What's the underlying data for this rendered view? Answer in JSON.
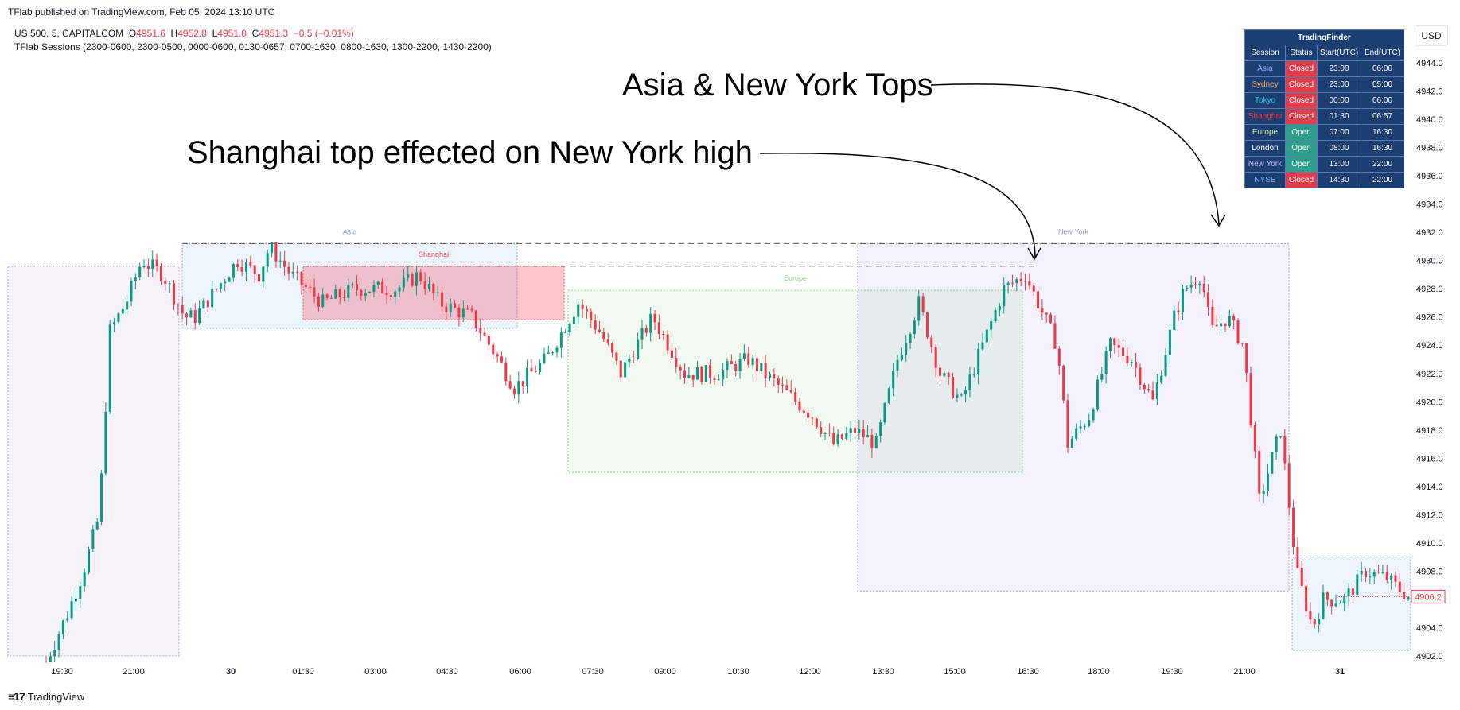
{
  "header": "TFlab published on TradingView.com, Feb 05, 2024 13:10 UTC",
  "symbol": {
    "name": "US 500, 5, CAPITALCOM",
    "o_label": "O",
    "o": "4951.6",
    "h_label": "H",
    "h": "4952.8",
    "l_label": "L",
    "l": "4951.0",
    "c_label": "C",
    "c": "4951.3",
    "change": "−0.5 (−0.01%)"
  },
  "indicator": "TFlab Sessions (2300-0600, 2300-0500, 0000-0600, 0130-0657, 0700-1630, 0800-1630, 1300-2200, 1430-2200)",
  "currency": "USD",
  "footer": "TradingView",
  "annotations": {
    "top": "Asia & New York Tops",
    "mid": "Shanghai top effected on New York high"
  },
  "price_tag": "4906.2",
  "table": {
    "title": "TradingFinder",
    "headers": [
      "Session",
      "Status",
      "Start(UTC)",
      "End(UTC)"
    ],
    "rows": [
      {
        "session": "Asia",
        "color": "#8fb3ff",
        "status": "Closed",
        "start": "23:00",
        "end": "06:00"
      },
      {
        "session": "Sydney",
        "color": "#f5a25d",
        "status": "Closed",
        "start": "23:00",
        "end": "05:00"
      },
      {
        "session": "Tokyo",
        "color": "#29c4e8",
        "status": "Closed",
        "start": "00:00",
        "end": "06:00"
      },
      {
        "session": "Shanghai",
        "color": "#ff3344",
        "status": "Closed",
        "start": "01:30",
        "end": "06:57"
      },
      {
        "session": "Europe",
        "color": "#d0f0a0",
        "status": "Open",
        "start": "07:00",
        "end": "16:30"
      },
      {
        "session": "London",
        "color": "#ffffff",
        "status": "Open",
        "start": "08:00",
        "end": "16:30"
      },
      {
        "session": "New York",
        "color": "#c8b8ff",
        "status": "Open",
        "start": "13:00",
        "end": "22:00"
      },
      {
        "session": "NYSE",
        "color": "#7fb0ff",
        "status": "Closed",
        "start": "14:30",
        "end": "22:00"
      }
    ]
  },
  "chart_data": {
    "type": "candlestick",
    "y_ticks": [
      "4944.0",
      "4942.0",
      "4940.0",
      "4938.0",
      "4936.0",
      "4934.0",
      "4932.0",
      "4930.0",
      "4928.0",
      "4926.0",
      "4924.0",
      "4922.0",
      "4920.0",
      "4918.0",
      "4916.0",
      "4914.0",
      "4912.0",
      "4910.0",
      "4908.0",
      "4906.0",
      "4904.0",
      "4902.0"
    ],
    "ylim": [
      4901.6,
      4945.2
    ],
    "x_ticks": [
      "19:30",
      "21:00",
      "30",
      "01:30",
      "03:00",
      "04:30",
      "06:00",
      "07:30",
      "09:00",
      "10:30",
      "12:00",
      "13:30",
      "15:00",
      "16:30",
      "18:00",
      "19:30",
      "21:00",
      "31"
    ],
    "price_path": [
      [
        0,
        4901.6
      ],
      [
        20,
        4905
      ],
      [
        35,
        4908
      ],
      [
        50,
        4912
      ],
      [
        60,
        4925
      ],
      [
        75,
        4927
      ],
      [
        90,
        4930
      ],
      [
        110,
        4929
      ],
      [
        130,
        4926
      ],
      [
        140,
        4926
      ],
      [
        150,
        4927
      ],
      [
        180,
        4930
      ],
      [
        200,
        4929
      ],
      [
        210,
        4931
      ],
      [
        230,
        4929
      ],
      [
        260,
        4927
      ],
      [
        290,
        4928
      ],
      [
        330,
        4928
      ],
      [
        350,
        4929
      ],
      [
        370,
        4927
      ],
      [
        400,
        4926
      ],
      [
        425,
        4923
      ],
      [
        440,
        4921
      ],
      [
        470,
        4923
      ],
      [
        500,
        4927
      ],
      [
        520,
        4925
      ],
      [
        540,
        4922
      ],
      [
        570,
        4926
      ],
      [
        600,
        4922
      ],
      [
        630,
        4922
      ],
      [
        660,
        4923
      ],
      [
        690,
        4921
      ],
      [
        720,
        4919
      ],
      [
        740,
        4917
      ],
      [
        760,
        4918
      ],
      [
        780,
        4917
      ],
      [
        800,
        4923
      ],
      [
        820,
        4927
      ],
      [
        840,
        4922
      ],
      [
        860,
        4920
      ],
      [
        880,
        4924
      ],
      [
        900,
        4928
      ],
      [
        920,
        4929
      ],
      [
        950,
        4924
      ],
      [
        960,
        4917
      ],
      [
        980,
        4919
      ],
      [
        1000,
        4924
      ],
      [
        1020,
        4923
      ],
      [
        1040,
        4920
      ],
      [
        1060,
        4926
      ],
      [
        1070,
        4928
      ],
      [
        1085,
        4929
      ],
      [
        1095,
        4925
      ],
      [
        1110,
        4926
      ],
      [
        1125,
        4924
      ],
      [
        1140,
        4913
      ],
      [
        1160,
        4918
      ],
      [
        1175,
        4908
      ],
      [
        1190,
        4904
      ],
      [
        1200,
        4906
      ],
      [
        1220,
        4906
      ],
      [
        1240,
        4908
      ],
      [
        1260,
        4907.5
      ],
      [
        1270,
        4906.8
      ],
      [
        1280,
        4906.2
      ]
    ],
    "sessions": [
      {
        "name": "",
        "y_range": [
          4902,
          4929.6
        ],
        "color": "#b39ddb"
      },
      {
        "name": "Asia",
        "y_range": [
          4925.2,
          4931.2
        ],
        "color": "#7ea7e8"
      },
      {
        "name": "Shanghai",
        "y_range": [
          4925.8,
          4929.6
        ],
        "color": "#f04a5a"
      },
      {
        "name": "Europe",
        "y_range": [
          4915.0,
          4927.9
        ],
        "color": "#8fd18a"
      },
      {
        "name": "New York",
        "y_range": [
          4906.6,
          4931.2
        ],
        "color": "#a593e0"
      },
      {
        "name": "",
        "y_range": [
          4902.4,
          4909.0
        ],
        "color": "#7ea7e8"
      }
    ],
    "levels": [
      4931.2,
      4929.6
    ],
    "last_price": 4906.2
  }
}
